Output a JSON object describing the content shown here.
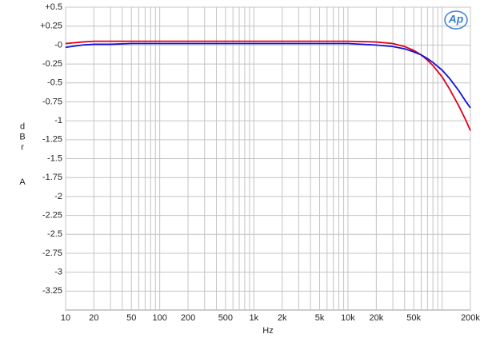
{
  "chart_data": {
    "type": "line",
    "xlabel": "Hz",
    "ylabel": "dBr",
    "ylabel2": "A",
    "logo": "Ap",
    "xscale": "log",
    "grid": true,
    "xlim": [
      10,
      200000
    ],
    "ylim": [
      -3.5,
      0.5
    ],
    "xticks": [
      10,
      20,
      50,
      100,
      200,
      500,
      {
        "value": 1000,
        "label": "1k"
      },
      {
        "value": 2000,
        "label": "2k"
      },
      {
        "value": 5000,
        "label": "5k"
      },
      {
        "value": 10000,
        "label": "10k"
      },
      {
        "value": 20000,
        "label": "20k"
      },
      {
        "value": 50000,
        "label": "50k"
      },
      {
        "value": 200000,
        "label": "200k"
      }
    ],
    "minor_xticks": [
      30,
      40,
      60,
      70,
      80,
      90,
      300,
      400,
      600,
      700,
      800,
      900,
      3000,
      4000,
      6000,
      7000,
      8000,
      9000,
      30000,
      40000,
      60000,
      70000,
      80000,
      90000,
      100000
    ],
    "yticks": [
      {
        "value": 0.5,
        "label": "+0.5"
      },
      {
        "value": 0.25,
        "label": "+0.25"
      },
      {
        "value": 0,
        "label": "-0"
      },
      -0.25,
      -0.5,
      -0.75,
      -1,
      -1.25,
      -1.5,
      -1.75,
      -2,
      -2.25,
      -2.5,
      -2.75,
      -3,
      -3.25
    ],
    "x": [
      10,
      15,
      20,
      30,
      50,
      100,
      200,
      500,
      1000,
      2000,
      5000,
      10000,
      20000,
      30000,
      40000,
      50000,
      60000,
      70000,
      80000,
      100000,
      120000,
      150000,
      180000,
      200000
    ],
    "series": [
      {
        "color": "#e0001b",
        "values": [
          0.02,
          0.04,
          0.05,
          0.05,
          0.05,
          0.05,
          0.05,
          0.05,
          0.05,
          0.05,
          0.05,
          0.05,
          0.04,
          0.02,
          -0.02,
          -0.07,
          -0.13,
          -0.2,
          -0.27,
          -0.42,
          -0.58,
          -0.8,
          -1.0,
          -1.13
        ]
      },
      {
        "color": "#1010d8",
        "values": [
          -0.03,
          0.0,
          0.01,
          0.01,
          0.02,
          0.02,
          0.02,
          0.02,
          0.02,
          0.02,
          0.02,
          0.02,
          0.0,
          -0.02,
          -0.05,
          -0.09,
          -0.13,
          -0.18,
          -0.23,
          -0.33,
          -0.44,
          -0.6,
          -0.75,
          -0.83
        ]
      }
    ]
  }
}
